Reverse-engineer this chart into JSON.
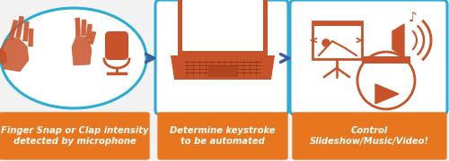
{
  "bg_color": "#f2f2f2",
  "box_border_color": "#2aacd4",
  "box_fill_color": "#ffffff",
  "label_bg_color": "#e8761e",
  "label_text_color": "#ffffff",
  "arrow_color": "#3a5fa0",
  "icon_color": "#c8522a",
  "labels": [
    "Finger Snap or Clap intensity\ndetected by microphone",
    "Determine keystroke\nto be automated",
    "Control\nSlideshow/Music/Video!"
  ],
  "label_fontsize": 7.2,
  "figsize": [
    5.0,
    1.8
  ],
  "dpi": 100
}
